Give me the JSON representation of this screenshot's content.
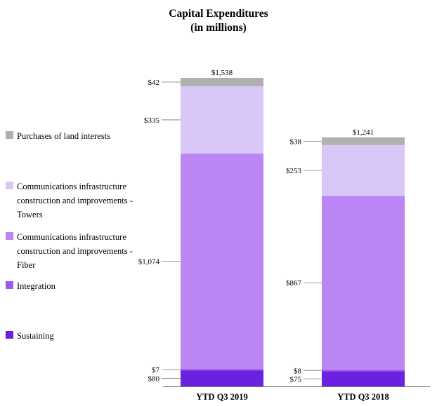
{
  "title_line1": "Capital Expenditures",
  "title_line2": "(in millions)",
  "colors": {
    "land": "#b0b0b0",
    "towers": "#d9c8f7",
    "fiber": "#bc85f4",
    "integration": "#9b5ce8",
    "sustaining": "#6a22e0",
    "axis": "#777777"
  },
  "legend": [
    {
      "key": "land",
      "label": "Purchases of land interests"
    },
    {
      "key": "towers",
      "label": "Communications infrastructure construction and improvements - Towers"
    },
    {
      "key": "fiber",
      "label": "Communications infrastructure construction and improvements - Fiber"
    },
    {
      "key": "integration",
      "label": "Integration"
    },
    {
      "key": "sustaining",
      "label": "Sustaining"
    }
  ],
  "chart_data": {
    "type": "stacked-bar",
    "title": "Capital Expenditures (in millions)",
    "categories": [
      "YTD Q3 2019",
      "YTD Q3 2018"
    ],
    "totals": [
      1538,
      1241
    ],
    "total_labels": [
      "$1,538",
      "$1,241"
    ],
    "series": [
      {
        "key": "sustaining",
        "name": "Sustaining",
        "values": [
          80,
          75
        ],
        "labels": [
          "$80",
          "$75"
        ]
      },
      {
        "key": "integration",
        "name": "Integration",
        "values": [
          7,
          8
        ],
        "labels": [
          "$7",
          "$8"
        ]
      },
      {
        "key": "fiber",
        "name": "Communications infrastructure construction and improvements - Fiber",
        "values": [
          1074,
          867
        ],
        "labels": [
          "$1,074",
          "$867"
        ]
      },
      {
        "key": "towers",
        "name": "Communications infrastructure construction and improvements - Towers",
        "values": [
          335,
          253
        ],
        "labels": [
          "$335",
          "$253"
        ]
      },
      {
        "key": "land",
        "name": "Purchases of land interests",
        "values": [
          42,
          38
        ],
        "labels": [
          "$42",
          "$38"
        ]
      }
    ]
  }
}
